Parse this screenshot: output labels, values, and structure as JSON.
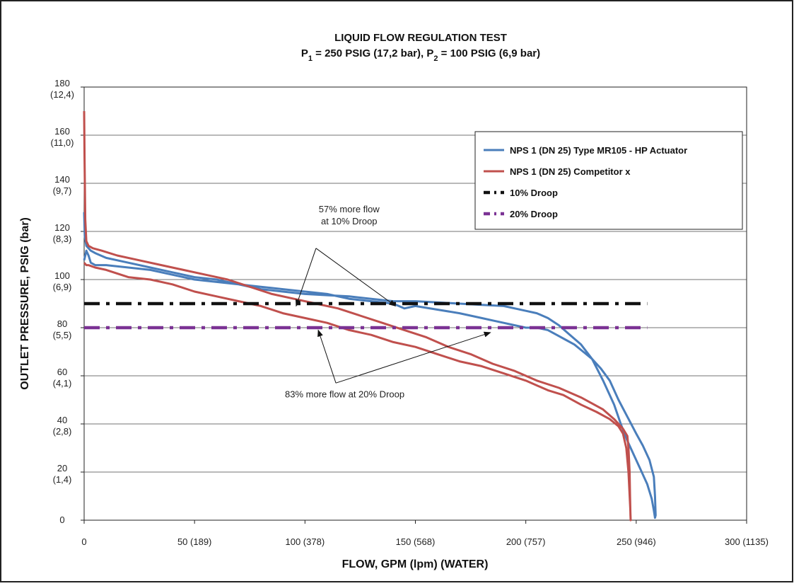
{
  "chart_data": {
    "type": "line",
    "title": "LIQUID FLOW REGULATION TEST",
    "subtitle": {
      "parts": [
        {
          "text": "P",
          "sub": false
        },
        {
          "text": "1",
          "sub": true
        },
        {
          "text": " = 250 PSIG (17,2 bar), P",
          "sub": false
        },
        {
          "text": "2",
          "sub": true
        },
        {
          "text": " = 100 PSIG (6,9 bar)",
          "sub": false
        }
      ]
    },
    "xlabel": "FLOW, GPM (lpm) (WATER)",
    "ylabel": "OUTLET PRESSURE, PSIG (bar)",
    "xlim": [
      0,
      300
    ],
    "ylim": [
      0,
      180
    ],
    "grid": "horizontal",
    "legend_position": "top-right",
    "x_ticks": [
      {
        "value": 0,
        "label": "0"
      },
      {
        "value": 50,
        "label": "50 (189)"
      },
      {
        "value": 100,
        "label": "100 (378)"
      },
      {
        "value": 150,
        "label": "150 (568)"
      },
      {
        "value": 200,
        "label": "200 (757)"
      },
      {
        "value": 250,
        "label": "250 (946)"
      },
      {
        "value": 300,
        "label": "300 (1135)"
      }
    ],
    "y_ticks": [
      {
        "value": 0,
        "label": "0",
        "sub": ""
      },
      {
        "value": 20,
        "label": "20",
        "sub": "(1,4)"
      },
      {
        "value": 40,
        "label": "40",
        "sub": "(2,8)"
      },
      {
        "value": 60,
        "label": "60",
        "sub": "(4,1)"
      },
      {
        "value": 80,
        "label": "80",
        "sub": "(5,5)"
      },
      {
        "value": 100,
        "label": "100",
        "sub": "(6,9)"
      },
      {
        "value": 120,
        "label": "120",
        "sub": "(8,3)"
      },
      {
        "value": 140,
        "label": "140",
        "sub": "(9,7)"
      },
      {
        "value": 160,
        "label": "160",
        "sub": "(11,0)"
      },
      {
        "value": 180,
        "label": "180",
        "sub": "(12,4)"
      }
    ],
    "series": [
      {
        "name": "NPS 1 (DN 25) Type MR105 - HP Actuator",
        "color": "#4a7ebb",
        "style": "solid",
        "x": [
          0,
          0.3,
          1,
          2,
          3,
          5,
          10,
          20,
          30,
          40,
          50,
          60,
          70,
          80,
          90,
          100,
          110,
          120,
          130,
          140,
          150,
          160,
          170,
          180,
          190,
          200,
          205,
          210,
          215,
          220,
          225,
          230,
          235,
          240,
          243,
          246,
          249,
          252,
          255,
          257,
          258,
          258.5,
          258.8,
          258.5,
          258,
          256,
          253,
          250,
          246,
          242,
          238,
          234,
          230,
          226,
          222,
          218,
          214,
          210,
          205,
          200,
          195,
          190,
          185,
          180,
          175,
          170,
          160,
          150,
          145,
          140,
          130,
          120,
          110,
          100,
          90,
          80,
          70,
          60,
          50,
          40,
          30,
          20,
          10,
          5,
          3,
          2,
          1,
          0.5,
          0
        ],
        "y": [
          128,
          118,
          114,
          113,
          112,
          111,
          109,
          107,
          105,
          103,
          101,
          100,
          98,
          96,
          95,
          94,
          93.5,
          93,
          92,
          91,
          91,
          90.5,
          90,
          89.5,
          89,
          87,
          86,
          84,
          81,
          77,
          73,
          67,
          58,
          48,
          40,
          33,
          27,
          21,
          15,
          9,
          4,
          1,
          2,
          10,
          18,
          25,
          31,
          36,
          43,
          50,
          58,
          63,
          67,
          70,
          73,
          75,
          77,
          79,
          80,
          80,
          81,
          82,
          83,
          84,
          85,
          86,
          87.5,
          89,
          88,
          90,
          91,
          92,
          94,
          95,
          96,
          97,
          98,
          99,
          100,
          102,
          104,
          105,
          106,
          106,
          107,
          110,
          112,
          110,
          108
        ]
      },
      {
        "name": "NPS 1 (DN 25) Competitor x",
        "color": "#c0504d",
        "style": "solid",
        "x": [
          0,
          0.2,
          0.5,
          1,
          2,
          4,
          8,
          15,
          25,
          35,
          45,
          55,
          65,
          75,
          85,
          95,
          105,
          115,
          125,
          135,
          145,
          155,
          165,
          175,
          185,
          195,
          205,
          215,
          225,
          235,
          240,
          244,
          246,
          246.5,
          247,
          247.2,
          247.4,
          247.5,
          247.3,
          246.5,
          245.5,
          244,
          242,
          238,
          232,
          225,
          217,
          210,
          200,
          190,
          180,
          170,
          160,
          150,
          140,
          130,
          120,
          110,
          100,
          90,
          80,
          70,
          60,
          50,
          40,
          30,
          20,
          10,
          5,
          2,
          1,
          0
        ],
        "y": [
          170,
          150,
          125,
          116,
          114,
          113,
          112,
          110,
          108,
          106,
          104,
          102,
          100,
          97,
          94,
          92,
          90,
          88,
          85,
          82,
          79,
          76,
          72,
          69,
          65,
          62,
          58,
          55,
          51,
          46,
          42,
          38,
          35,
          30,
          20,
          10,
          2,
          0,
          5,
          20,
          30,
          36,
          39,
          42,
          45,
          48,
          52,
          54,
          58,
          61,
          64,
          66,
          69,
          72,
          74,
          77,
          79,
          82,
          84,
          86,
          89,
          91,
          93,
          95,
          98,
          100,
          101,
          104,
          105,
          106,
          106,
          107
        ]
      },
      {
        "name": "10% Droop",
        "color": "#111111",
        "style": "dashdot",
        "x": [
          0,
          255
        ],
        "y": [
          90,
          90
        ]
      },
      {
        "name": "20% Droop",
        "color": "#7b3294",
        "style": "dashdot",
        "x": [
          0,
          255
        ],
        "y": [
          80,
          80
        ]
      }
    ],
    "annotations": [
      {
        "text_lines": [
          "57% more flow",
          "at 10% Droop"
        ],
        "text_at": [
          120,
          128
        ],
        "arrow_from": [
          105,
          113
        ],
        "arrows_to": [
          [
            96,
            89
          ],
          [
            141,
            89
          ]
        ]
      },
      {
        "text_lines": [
          "83% more flow at 20% Droop"
        ],
        "text_at": [
          118,
          51
        ],
        "arrow_from": [
          114,
          57
        ],
        "arrows_to": [
          [
            106,
            79
          ],
          [
            184,
            78
          ]
        ]
      }
    ]
  }
}
